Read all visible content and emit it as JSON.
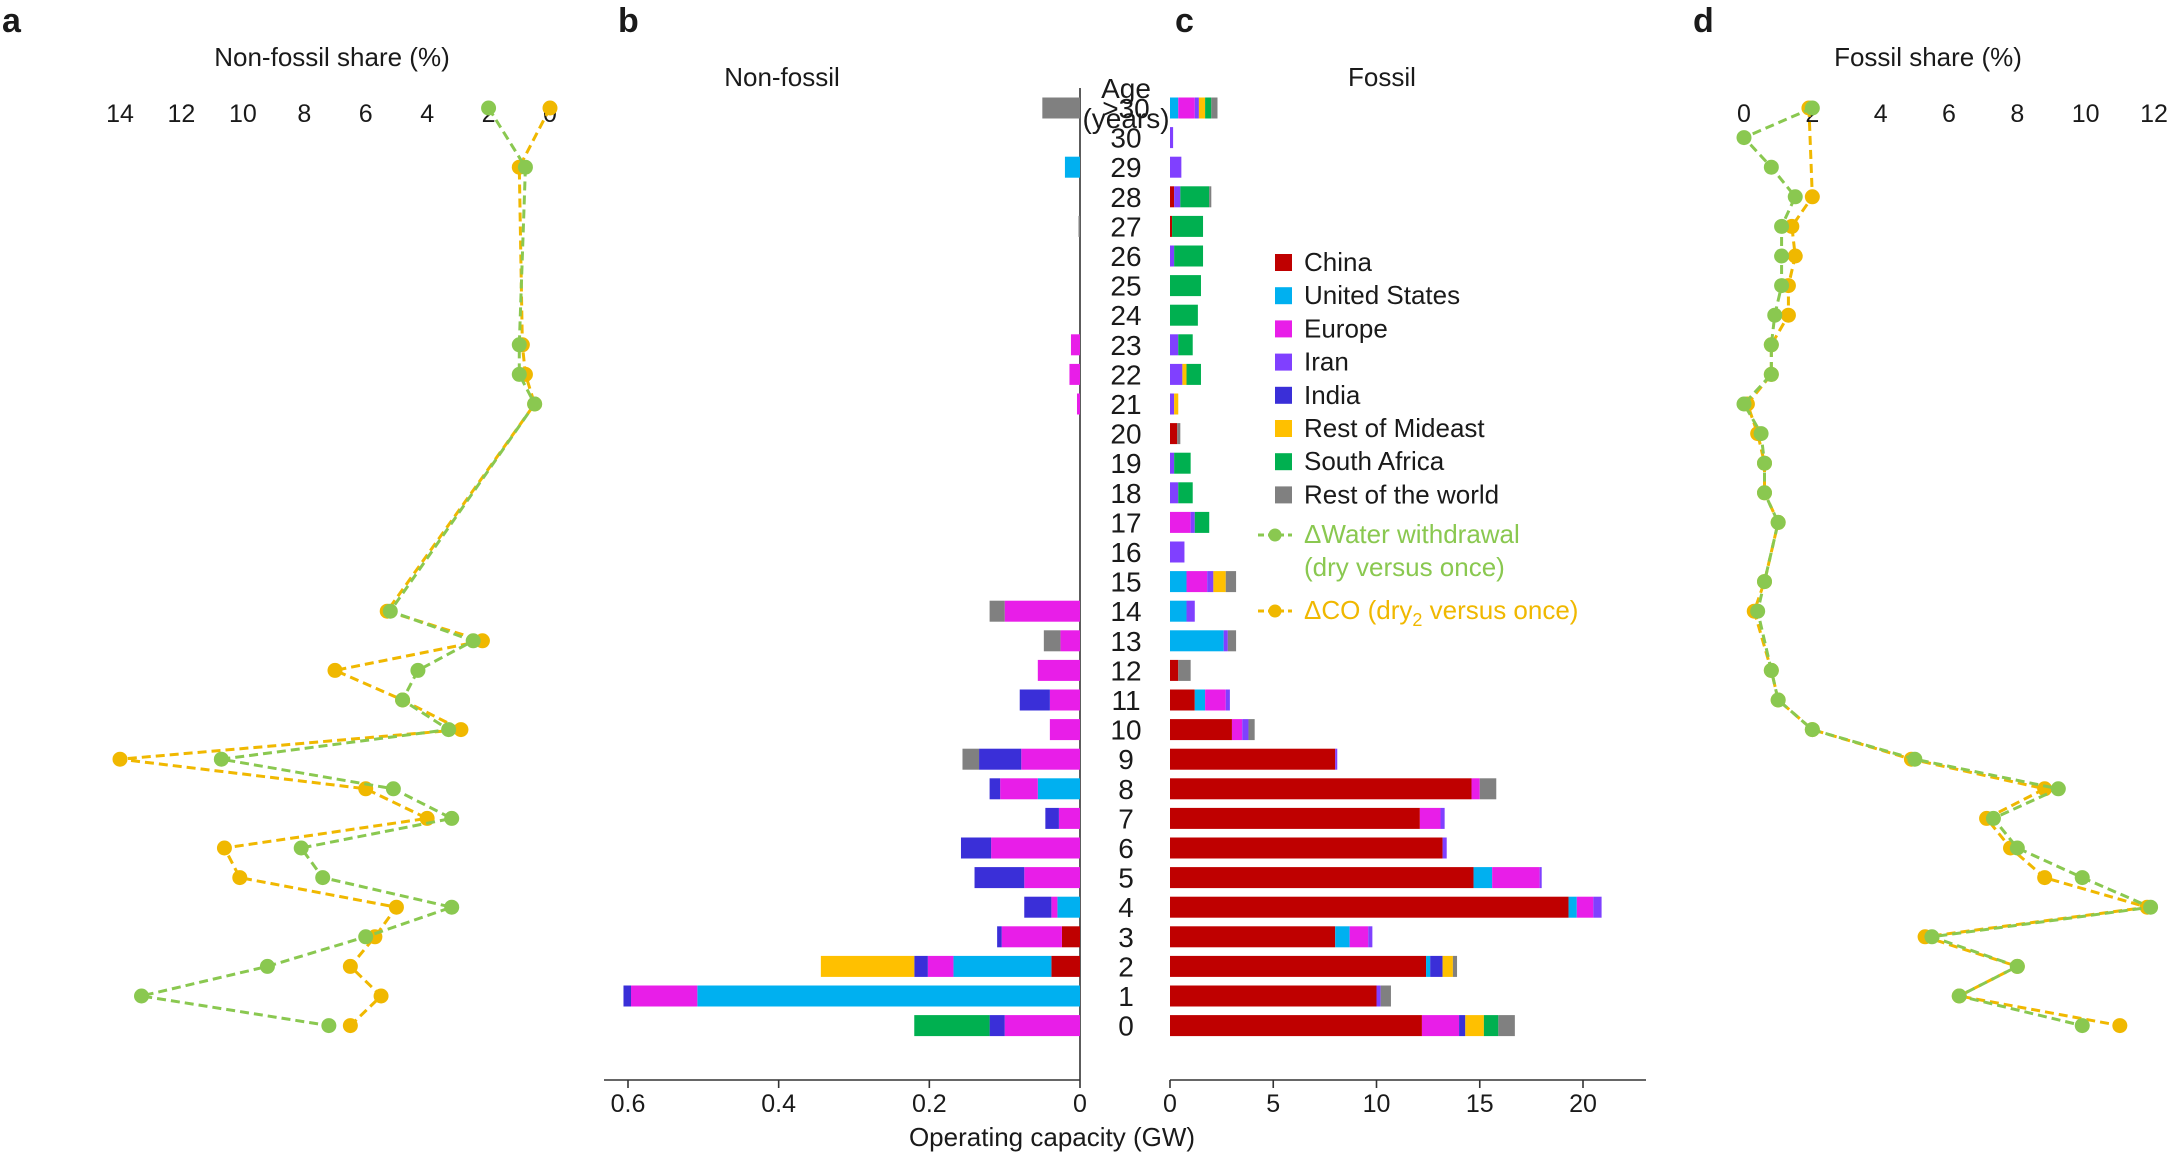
{
  "labels": {
    "a": "a",
    "b": "b",
    "c": "c",
    "d": "d",
    "panel_a_title": "Non-fossil share (%)",
    "panel_b_title": "Non-fossil",
    "panel_c_title": "Fossil",
    "panel_d_title": "Fossil share (%)",
    "age_title_1": "Age",
    "age_title_2": "(years)",
    "x_axis_label": "Operating capacity (GW)"
  },
  "colors": {
    "China": "#bf0000",
    "United States": "#00b0f0",
    "Europe": "#e81ee8",
    "Iran": "#8040ff",
    "India": "#3a2fd8",
    "Rest of Mideast": "#ffc000",
    "South Africa": "#00b050",
    "Rest of the world": "#808080",
    "water": "#8ac850",
    "co2": "#f0b800"
  },
  "legend": {
    "regions": [
      "China",
      "United States",
      "Europe",
      "Iran",
      "India",
      "Rest of Mideast",
      "South Africa",
      "Rest of the world"
    ],
    "water_line1": "ΔWater withdrawal",
    "water_line2": "(dry versus once)",
    "co2_pre": "ΔCO",
    "co2_mid": " (dry",
    "co2_sub": "2",
    "co2_post": " versus once)"
  },
  "chart_data": [
    {
      "panel": "a",
      "type": "line",
      "title": "Non-fossil share (%)",
      "x_ticks": [
        "14",
        "12",
        "10",
        "8",
        "6",
        "4",
        "2",
        "0"
      ],
      "xlim": [
        14,
        0
      ],
      "categories": [
        ">30",
        "30",
        "29",
        "28",
        "27",
        "26",
        "25",
        "24",
        "23",
        "22",
        "21",
        "20",
        "19",
        "18",
        "17",
        "16",
        "15",
        "14",
        "13",
        "12",
        "11",
        "10",
        "9",
        "8",
        "7",
        "6",
        "5",
        "4",
        "3",
        "2",
        "1",
        "0"
      ],
      "series": [
        {
          "name": "ΔWater withdrawal (dry versus once)",
          "values": [
            2.0,
            null,
            0.8,
            null,
            null,
            null,
            null,
            null,
            1.0,
            1.0,
            0.5,
            null,
            null,
            null,
            null,
            null,
            null,
            5.2,
            2.5,
            4.3,
            4.8,
            3.3,
            10.7,
            5.1,
            3.2,
            8.1,
            7.4,
            3.2,
            6.0,
            9.2,
            13.3,
            7.2
          ],
          "marker": "circle",
          "style": "dashed"
        },
        {
          "name": "ΔCO (dry2 versus once)",
          "values": [
            0.0,
            null,
            1.0,
            null,
            null,
            null,
            null,
            null,
            0.9,
            0.8,
            0.5,
            null,
            null,
            null,
            null,
            null,
            null,
            5.3,
            2.2,
            7.0,
            4.8,
            2.9,
            14.0,
            6.0,
            4.0,
            10.6,
            10.1,
            5.0,
            5.7,
            6.5,
            5.5,
            6.5
          ],
          "marker": "circle",
          "style": "dashed"
        }
      ]
    },
    {
      "panel": "b",
      "type": "bar",
      "orientation": "horizontal",
      "title": "Non-fossil",
      "x_ticks": [
        "0.6",
        "0.4",
        "0.2",
        "0"
      ],
      "xlim": [
        0.64,
        0
      ],
      "categories": [
        ">30",
        "30",
        "29",
        "28",
        "27",
        "26",
        "25",
        "24",
        "23",
        "22",
        "21",
        "20",
        "19",
        "18",
        "17",
        "16",
        "15",
        "14",
        "13",
        "12",
        "11",
        "10",
        "9",
        "8",
        "7",
        "6",
        "5",
        "4",
        "3",
        "2",
        "1",
        "0"
      ],
      "stacks": [
        [
          [
            "Rest of the world",
            0.05
          ]
        ],
        [],
        [
          [
            "United States",
            0.02
          ]
        ],
        [],
        [
          [
            "Rest of the world",
            0.002
          ]
        ],
        [],
        [],
        [],
        [
          [
            "Europe",
            0.012
          ]
        ],
        [
          [
            "Europe",
            0.014
          ]
        ],
        [
          [
            "Europe",
            0.004
          ]
        ],
        [],
        [],
        [],
        [],
        [],
        [],
        [
          [
            "Europe",
            0.1
          ],
          [
            "Rest of the world",
            0.02
          ]
        ],
        [
          [
            "Europe",
            0.026
          ],
          [
            "Rest of the world",
            0.022
          ]
        ],
        [
          [
            "Europe",
            0.056
          ]
        ],
        [
          [
            "Europe",
            0.04
          ],
          [
            "India",
            0.04
          ]
        ],
        [
          [
            "Europe",
            0.04
          ]
        ],
        [
          [
            "Europe",
            0.078
          ],
          [
            "India",
            0.056
          ],
          [
            "Rest of the world",
            0.022
          ]
        ],
        [
          [
            "United States",
            0.056
          ],
          [
            "Europe",
            0.05
          ],
          [
            "India",
            0.014
          ]
        ],
        [
          [
            "Europe",
            0.028
          ],
          [
            "India",
            0.018
          ]
        ],
        [
          [
            "Europe",
            0.118
          ],
          [
            "India",
            0.04
          ]
        ],
        [
          [
            "Europe",
            0.074
          ],
          [
            "India",
            0.066
          ]
        ],
        [
          [
            "United States",
            0.03
          ],
          [
            "Europe",
            0.008
          ],
          [
            "India",
            0.036
          ]
        ],
        [
          [
            "China",
            0.024
          ],
          [
            "Europe",
            0.08
          ],
          [
            "India",
            0.006
          ]
        ],
        [
          [
            "China",
            0.038
          ],
          [
            "United States",
            0.13
          ],
          [
            "Europe",
            0.034
          ],
          [
            "India",
            0.018
          ],
          [
            "Rest of Mideast",
            0.124
          ]
        ],
        [
          [
            "United States",
            0.508
          ],
          [
            "Europe",
            0.088
          ],
          [
            "India",
            0.01
          ]
        ],
        [
          [
            "Europe",
            0.1
          ],
          [
            "India",
            0.02
          ],
          [
            "South Africa",
            0.1
          ]
        ]
      ]
    },
    {
      "panel": "c",
      "type": "bar",
      "orientation": "horizontal",
      "title": "Fossil",
      "xlabel": "Operating capacity (GW)",
      "x_ticks": [
        "0",
        "5",
        "10",
        "15",
        "20"
      ],
      "xlim": [
        0,
        23.5
      ],
      "categories": [
        ">30",
        "30",
        "29",
        "28",
        "27",
        "26",
        "25",
        "24",
        "23",
        "22",
        "21",
        "20",
        "19",
        "18",
        "17",
        "16",
        "15",
        "14",
        "13",
        "12",
        "11",
        "10",
        "9",
        "8",
        "7",
        "6",
        "5",
        "4",
        "3",
        "2",
        "1",
        "0"
      ],
      "stacks": [
        [
          [
            "United States",
            0.4
          ],
          [
            "Europe",
            0.8
          ],
          [
            "Iran",
            0.2
          ],
          [
            "Rest of Mideast",
            0.3
          ],
          [
            "South Africa",
            0.3
          ],
          [
            "Rest of the world",
            0.3
          ]
        ],
        [
          [
            "Iran",
            0.15
          ]
        ],
        [
          [
            "Iran",
            0.55
          ]
        ],
        [
          [
            "China",
            0.2
          ],
          [
            "Iran",
            0.3
          ],
          [
            "South Africa",
            1.4
          ],
          [
            "Rest of the world",
            0.1
          ]
        ],
        [
          [
            "China",
            0.1
          ],
          [
            "South Africa",
            1.5
          ]
        ],
        [
          [
            "Iran",
            0.2
          ],
          [
            "South Africa",
            1.4
          ]
        ],
        [
          [
            "South Africa",
            1.5
          ]
        ],
        [
          [
            "South Africa",
            1.35
          ]
        ],
        [
          [
            "Iran",
            0.4
          ],
          [
            "South Africa",
            0.7
          ]
        ],
        [
          [
            "Iran",
            0.6
          ],
          [
            "Rest of Mideast",
            0.2
          ],
          [
            "South Africa",
            0.7
          ]
        ],
        [
          [
            "Iran",
            0.2
          ],
          [
            "Rest of Mideast",
            0.2
          ]
        ],
        [
          [
            "China",
            0.35
          ],
          [
            "Rest of the world",
            0.15
          ]
        ],
        [
          [
            "Iran",
            0.2
          ],
          [
            "South Africa",
            0.8
          ]
        ],
        [
          [
            "Iran",
            0.4
          ],
          [
            "South Africa",
            0.7
          ]
        ],
        [
          [
            "Europe",
            1.0
          ],
          [
            "Iran",
            0.2
          ],
          [
            "South Africa",
            0.7
          ]
        ],
        [
          [
            "Iran",
            0.7
          ]
        ],
        [
          [
            "United States",
            0.8
          ],
          [
            "Europe",
            1.0
          ],
          [
            "Iran",
            0.3
          ],
          [
            "Rest of Mideast",
            0.6
          ],
          [
            "Rest of the world",
            0.5
          ]
        ],
        [
          [
            "United States",
            0.8
          ],
          [
            "Iran",
            0.4
          ]
        ],
        [
          [
            "United States",
            2.6
          ],
          [
            "Iran",
            0.2
          ],
          [
            "Rest of the world",
            0.4
          ]
        ],
        [
          [
            "China",
            0.4
          ],
          [
            "Rest of the world",
            0.6
          ]
        ],
        [
          [
            "China",
            1.2
          ],
          [
            "United States",
            0.5
          ],
          [
            "Europe",
            1.0
          ],
          [
            "Iran",
            0.2
          ]
        ],
        [
          [
            "China",
            3.0
          ],
          [
            "Europe",
            0.5
          ],
          [
            "Iran",
            0.3
          ],
          [
            "Rest of the world",
            0.3
          ]
        ],
        [
          [
            "China",
            8.0
          ],
          [
            "Iran",
            0.1
          ]
        ],
        [
          [
            "China",
            14.6
          ],
          [
            "Europe",
            0.4
          ],
          [
            "Rest of the world",
            0.8
          ]
        ],
        [
          [
            "China",
            12.1
          ],
          [
            "Europe",
            1.0
          ],
          [
            "Iran",
            0.2
          ]
        ],
        [
          [
            "China",
            13.2
          ],
          [
            "Iran",
            0.2
          ]
        ],
        [
          [
            "China",
            14.7
          ],
          [
            "United States",
            0.9
          ],
          [
            "Europe",
            2.3
          ],
          [
            "Iran",
            0.1
          ]
        ],
        [
          [
            "China",
            19.3
          ],
          [
            "United States",
            0.4
          ],
          [
            "Europe",
            0.8
          ],
          [
            "Iran",
            0.4
          ]
        ],
        [
          [
            "China",
            8.0
          ],
          [
            "United States",
            0.7
          ],
          [
            "Europe",
            0.9
          ],
          [
            "Iran",
            0.2
          ]
        ],
        [
          [
            "China",
            12.4
          ],
          [
            "United States",
            0.2
          ],
          [
            "India",
            0.6
          ],
          [
            "Rest of Mideast",
            0.5
          ],
          [
            "Rest of the world",
            0.2
          ]
        ],
        [
          [
            "China",
            10.0
          ],
          [
            "Iran",
            0.2
          ],
          [
            "Rest of the world",
            0.5
          ]
        ],
        [
          [
            "China",
            12.2
          ],
          [
            "Europe",
            1.8
          ],
          [
            "India",
            0.3
          ],
          [
            "Rest of Mideast",
            0.9
          ],
          [
            "South Africa",
            0.7
          ],
          [
            "Rest of the world",
            0.8
          ]
        ]
      ]
    },
    {
      "panel": "d",
      "type": "line",
      "title": "Fossil share (%)",
      "x_ticks": [
        "0",
        "2",
        "4",
        "6",
        "8",
        "10",
        "12"
      ],
      "xlim": [
        0,
        12
      ],
      "categories": [
        ">30",
        "30",
        "29",
        "28",
        "27",
        "26",
        "25",
        "24",
        "23",
        "22",
        "21",
        "20",
        "19",
        "18",
        "17",
        "16",
        "15",
        "14",
        "13",
        "12",
        "11",
        "10",
        "9",
        "8",
        "7",
        "6",
        "5",
        "4",
        "3",
        "2",
        "1",
        "0"
      ],
      "series": [
        {
          "name": "ΔWater withdrawal (dry versus once)",
          "values": [
            2.0,
            0.0,
            0.8,
            1.5,
            1.1,
            1.1,
            1.1,
            0.9,
            0.8,
            0.8,
            0.0,
            0.5,
            0.6,
            0.6,
            1.0,
            null,
            0.6,
            0.4,
            null,
            0.8,
            1.0,
            2.0,
            5.0,
            9.2,
            7.3,
            8.0,
            9.9,
            11.9,
            5.5,
            8.0,
            6.3,
            9.9
          ],
          "marker": "circle",
          "style": "dashed"
        },
        {
          "name": "ΔCO (dry2 versus once)",
          "values": [
            1.9,
            null,
            null,
            2.0,
            1.4,
            1.5,
            1.3,
            1.3,
            0.8,
            0.8,
            0.1,
            0.4,
            0.6,
            0.6,
            1.0,
            null,
            0.6,
            0.3,
            null,
            0.8,
            1.0,
            2.0,
            4.9,
            8.8,
            7.1,
            7.8,
            8.8,
            11.8,
            5.3,
            8.0,
            6.3,
            11.0
          ],
          "marker": "circle",
          "style": "dashed"
        }
      ]
    }
  ]
}
